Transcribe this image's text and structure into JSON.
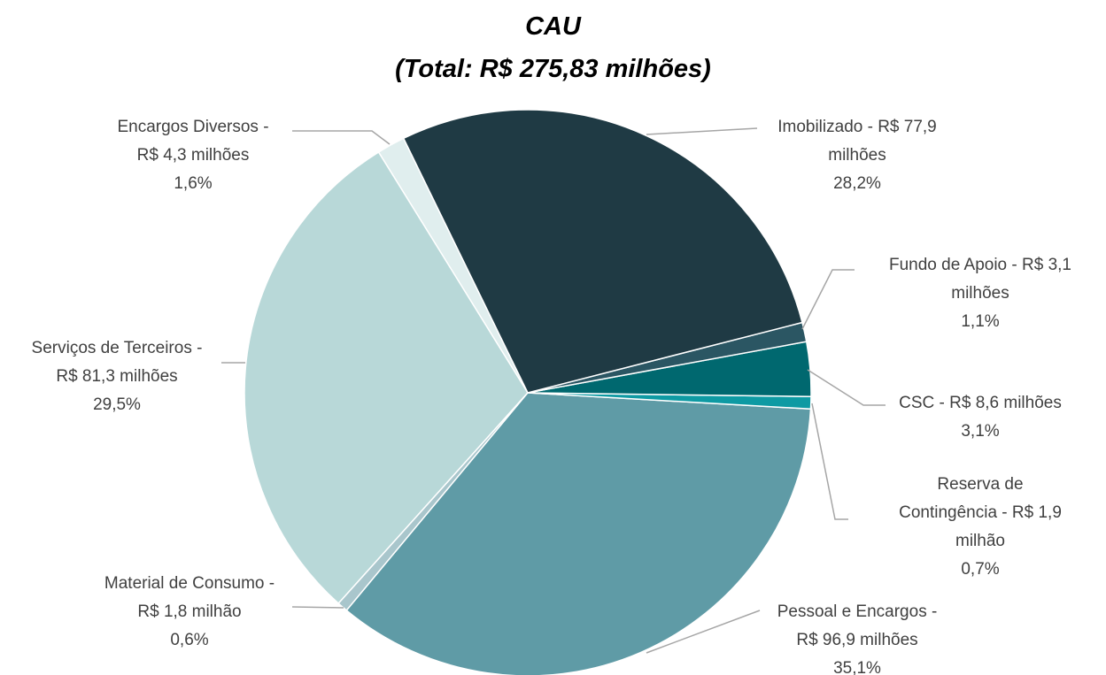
{
  "chart_data": {
    "type": "pie",
    "title": "CAU",
    "subtitle": "(Total: R$ 275,83 milhões)",
    "categories": [
      "Imobilizado - R$ 77,9 milhões",
      "Fundo de Apoio - R$ 3,1 milhões",
      "CSC - R$ 8,6 milhões",
      "Reserva de Contingência - R$ 1,9 milhão",
      "Pessoal e Encargos - R$ 96,9 milhões",
      "Material de Consumo - R$ 1,8 milhão",
      "Serviços de Terceiros - R$ 81,3 milhões",
      "Encargos Diversos - R$ 4,3 milhões"
    ],
    "values": [
      28.2,
      1.1,
      3.1,
      0.7,
      35.1,
      0.6,
      29.5,
      1.6
    ],
    "value_labels": [
      "28,2%",
      "1,1%",
      "3,1%",
      "0,7%",
      "35,1%",
      "0,6%",
      "29,5%",
      "1,6%"
    ],
    "colors": [
      "#1f3a44",
      "#2b5663",
      "#00686f",
      "#0e9aa3",
      "#5f9ba6",
      "#a9c6cc",
      "#b8d8d8",
      "#e0eeee"
    ]
  }
}
